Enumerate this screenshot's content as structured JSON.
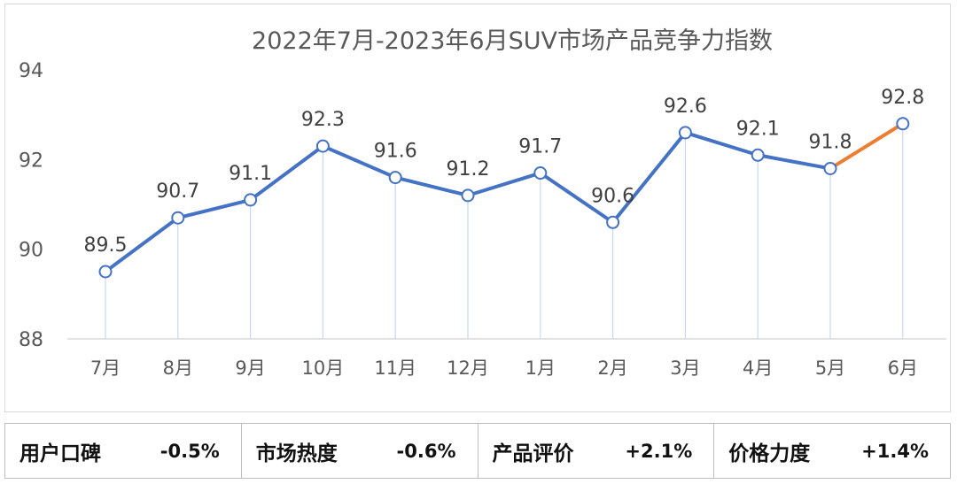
{
  "chart_data": {
    "type": "line",
    "title": "2022年7月-2023年6月SUV市场产品竞争力指数",
    "categories": [
      "7月",
      "8月",
      "9月",
      "10月",
      "11月",
      "12月",
      "1月",
      "2月",
      "3月",
      "4月",
      "5月",
      "6月"
    ],
    "values": [
      89.5,
      90.7,
      91.1,
      92.3,
      91.6,
      91.2,
      91.7,
      90.6,
      92.6,
      92.1,
      91.8,
      92.8
    ],
    "yticks": [
      94,
      92,
      90,
      88
    ],
    "ylim": [
      88,
      94
    ],
    "xlabel": "",
    "ylabel": "",
    "colors": {
      "main_line": "#4472c4",
      "last_segment": "#ed7d31",
      "droplines": "#c9d7ee"
    }
  },
  "metrics": [
    {
      "label": "用户口碑",
      "value": "-0.5%"
    },
    {
      "label": "市场热度",
      "value": "-0.6%"
    },
    {
      "label": "产品评价",
      "value": "+2.1%"
    },
    {
      "label": "价格力度",
      "value": "+1.4%"
    }
  ]
}
